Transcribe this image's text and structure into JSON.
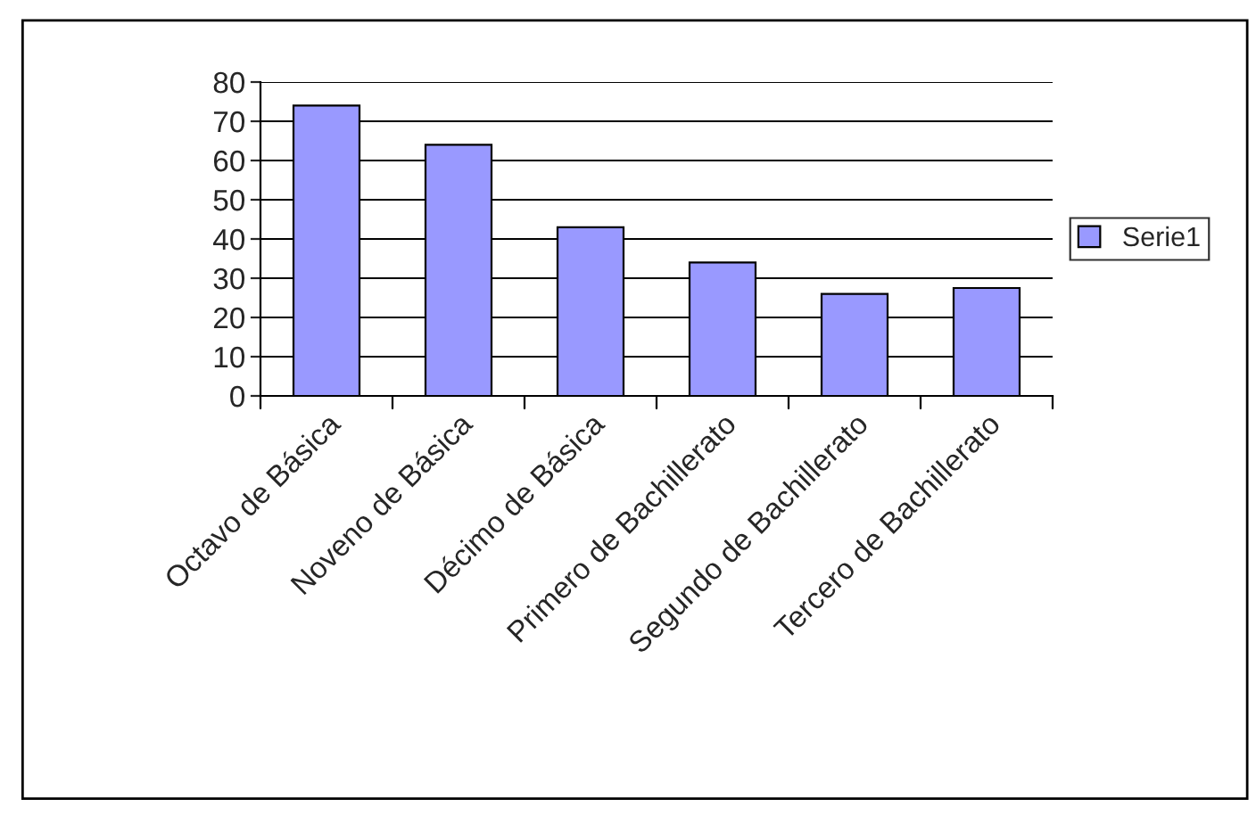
{
  "chart_data": {
    "type": "bar",
    "categories": [
      "Octavo de Básica",
      "Noveno de Básica",
      "Décimo de Básica",
      "Primero de Bachillerato",
      "Segundo de Bachillerato",
      "Tercero de Bachillerato"
    ],
    "series": [
      {
        "name": "Serie1",
        "color": "#9999ff",
        "values": [
          74,
          64,
          43,
          34,
          26,
          27.5
        ]
      }
    ],
    "ylim": [
      0,
      80
    ],
    "yticks": [
      0,
      10,
      20,
      30,
      40,
      50,
      60,
      70,
      80
    ],
    "grid": "y",
    "legend": "right"
  }
}
